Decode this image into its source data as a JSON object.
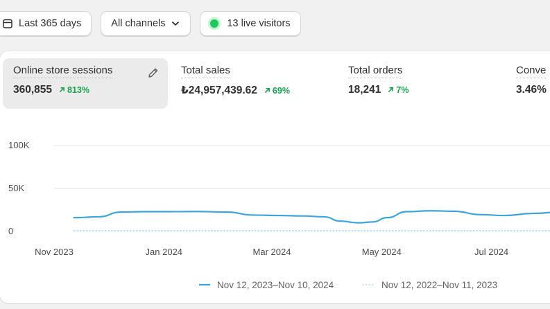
{
  "filters": {
    "date_range": "Last 365 days",
    "channels": "All channels",
    "live_visitors": "13 live visitors"
  },
  "metrics": [
    {
      "label": "Online store sessions",
      "value": "360,855",
      "change": "813%",
      "active": true
    },
    {
      "label": "Total sales",
      "value": "₺24,957,439.62",
      "change": "69%"
    },
    {
      "label": "Total orders",
      "value": "18,241",
      "change": "7%"
    },
    {
      "label": "Conve",
      "value": "3.46%"
    }
  ],
  "colors": {
    "accent_green": "#16a34a",
    "current_series": "#3aa6dd",
    "previous_series": "#9ed3f0",
    "live_dot": "#22c55e"
  },
  "icons": {
    "date": "calendar-icon",
    "channels": "chevron-down-icon",
    "edit": "pencil-icon",
    "change": "arrow-up-right-icon"
  },
  "chart_data": {
    "type": "line",
    "y_ticks": [
      "0",
      "50K",
      "100K"
    ],
    "x_ticks": [
      "Nov 2023",
      "Jan 2024",
      "Mar 2024",
      "May 2024",
      "Jul 2024"
    ],
    "ylim": [
      0,
      100000
    ],
    "grid": true,
    "legend_position": "bottom",
    "series": [
      {
        "name": "Nov 12, 2023–Nov 10, 2024",
        "style": "solid",
        "x": [
          "2023-11-12",
          "2023-11-26",
          "2023-12-08",
          "2023-12-20",
          "2024-01-05",
          "2024-01-20",
          "2024-02-05",
          "2024-02-20",
          "2024-03-05",
          "2024-03-18",
          "2024-03-30",
          "2024-04-08",
          "2024-04-18",
          "2024-04-26",
          "2024-05-04",
          "2024-05-15",
          "2024-05-28",
          "2024-06-10",
          "2024-06-25",
          "2024-07-08",
          "2024-07-25",
          "2024-08-08"
        ],
        "values": [
          16000,
          17000,
          22500,
          23000,
          23000,
          23200,
          22500,
          19000,
          18500,
          18000,
          17000,
          12000,
          10000,
          11000,
          16000,
          23000,
          24000,
          23500,
          19500,
          18500,
          21000,
          22500
        ]
      },
      {
        "name": "Nov 12, 2022–Nov 11, 2023",
        "style": "dotted",
        "x": [
          "2023-11-12",
          "2024-08-08"
        ],
        "values": [
          700,
          700
        ]
      }
    ]
  }
}
